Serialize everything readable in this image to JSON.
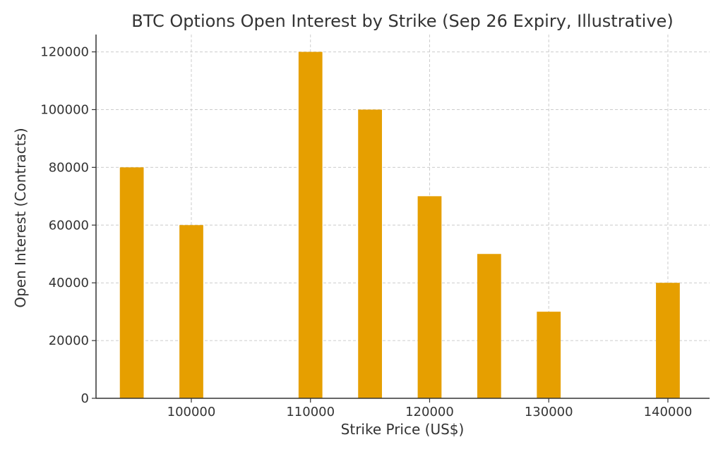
{
  "chart_data": {
    "type": "bar",
    "title": "BTC Options Open Interest by Strike (Sep 26 Expiry, Illustrative)",
    "xlabel": "Strike Price (US$)",
    "ylabel": "Open Interest (Contracts)",
    "x": [
      95000,
      100000,
      110000,
      115000,
      120000,
      125000,
      130000,
      140000
    ],
    "values": [
      80000,
      60000,
      120000,
      100000,
      70000,
      50000,
      30000,
      40000
    ],
    "bar_width": 2000,
    "xlim": [
      92000,
      143500
    ],
    "ylim": [
      0,
      126000
    ],
    "xticks": [
      100000,
      110000,
      120000,
      130000,
      140000
    ],
    "yticks": [
      0,
      20000,
      40000,
      60000,
      80000,
      100000,
      120000
    ],
    "grid": true,
    "colors": {
      "bar": "#E69F00",
      "grid": "#cccccc",
      "axis": "#333333"
    }
  }
}
